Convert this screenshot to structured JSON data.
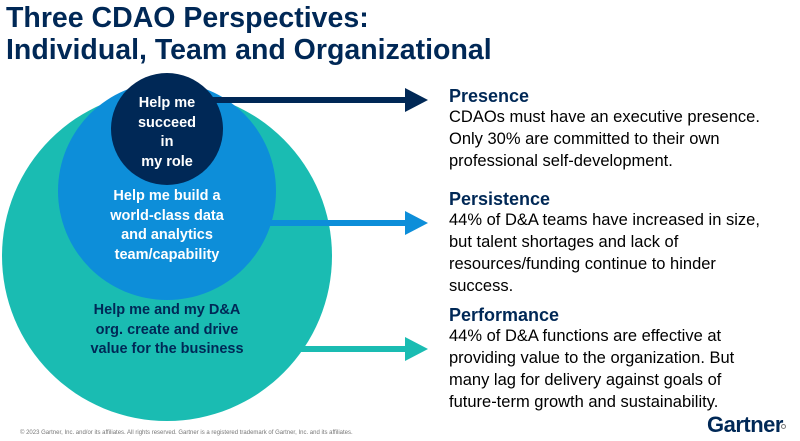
{
  "title": {
    "line1": "Three CDAO Perspectives:",
    "line2": "Individual, Team and Organizational"
  },
  "circles": {
    "inner": {
      "lines": [
        "Help me",
        "succeed",
        "in",
        "my role"
      ],
      "color": "#002856"
    },
    "middle": {
      "lines": [
        "Help me build a",
        "world-class data",
        "and analytics",
        "team/capability"
      ],
      "color": "#0d8ed9"
    },
    "outer": {
      "lines": [
        "Help me and my D&A",
        "org. create and drive",
        "value for the business"
      ],
      "color": "#1abcb2"
    }
  },
  "points": [
    {
      "heading": "Presence",
      "lines": [
        "CDAOs must have an executive presence.",
        "Only 30% are committed to their own",
        "professional self-development."
      ]
    },
    {
      "heading": "Persistence",
      "lines": [
        "44% of D&A teams have increased in size,",
        "but talent shortages and lack of",
        "resources/funding continue to hinder",
        "success."
      ]
    },
    {
      "heading": "Performance",
      "lines": [
        "44% of D&A functions are effective at",
        "providing value to the organization. But",
        "many lag for delivery against goals of",
        "future-term growth and sustainability."
      ]
    }
  ],
  "footer": "© 2023 Gartner, Inc. and/or its affiliates. All rights reserved. Gartner is a registered trademark of Gartner, Inc. and its affiliates.",
  "logo": "Gartner"
}
